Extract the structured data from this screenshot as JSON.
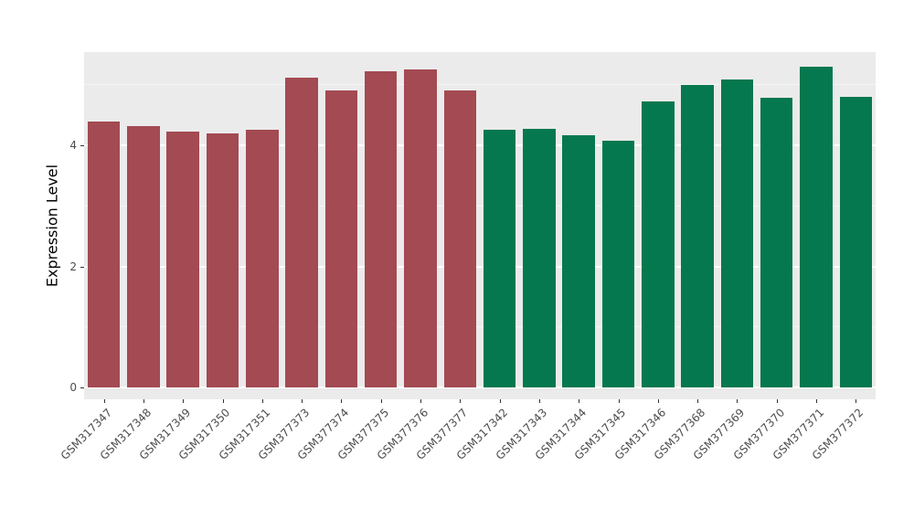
{
  "figure": {
    "background": "#FFFFFF"
  },
  "chart_data": {
    "type": "bar",
    "title": "",
    "xlabel": "",
    "ylabel": "Expression Level",
    "categories": [
      "GSM317347",
      "GSM317348",
      "GSM317349",
      "GSM317350",
      "GSM317351",
      "GSM377373",
      "GSM377374",
      "GSM377375",
      "GSM377376",
      "GSM377377",
      "GSM317342",
      "GSM317343",
      "GSM317344",
      "GSM317345",
      "GSM317346",
      "GSM377368",
      "GSM377369",
      "GSM377370",
      "GSM377371",
      "GSM377372"
    ],
    "values": [
      4.4,
      4.32,
      4.22,
      4.2,
      4.25,
      5.12,
      4.9,
      5.22,
      5.26,
      4.9,
      4.25,
      4.27,
      4.17,
      4.08,
      4.72,
      5.0,
      5.08,
      4.78,
      5.3,
      4.8
    ],
    "bar_colors": [
      "#A34A52",
      "#A34A52",
      "#A34A52",
      "#A34A52",
      "#A34A52",
      "#A34A52",
      "#A34A52",
      "#A34A52",
      "#A34A52",
      "#A34A52",
      "#06784F",
      "#06784F",
      "#06784F",
      "#06784F",
      "#06784F",
      "#06784F",
      "#06784F",
      "#06784F",
      "#06784F",
      "#06784F"
    ],
    "group_colors": {
      "group1": "#A34A52",
      "group2": "#06784F"
    },
    "yticks": [
      0,
      2,
      4
    ],
    "yticks_minor": [
      1,
      3,
      5
    ],
    "ylim": [
      0,
      5.54
    ],
    "panel_bg": "#EBEBEB",
    "grid_major_color": "#FFFFFF",
    "grid_minor_color": "#F5F5F5",
    "tick_label_color": "#4D4D4D",
    "legend": "none"
  }
}
